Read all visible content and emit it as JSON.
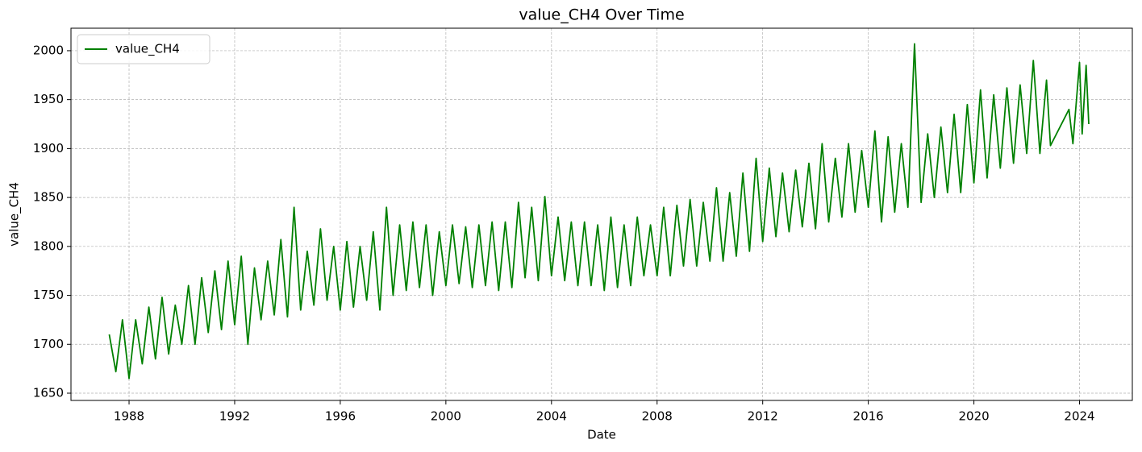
{
  "chart_data": {
    "type": "line",
    "title": "value_CH4 Over Time",
    "xlabel": "Date",
    "ylabel": "value_CH4",
    "x": [
      1987.25,
      1987.5,
      1987.75,
      1988,
      1988.25,
      1988.5,
      1988.75,
      1989,
      1989.25,
      1989.5,
      1989.75,
      1990,
      1990.25,
      1990.5,
      1990.75,
      1991,
      1991.25,
      1991.5,
      1991.75,
      1992,
      1992.25,
      1992.5,
      1992.75,
      1993,
      1993.25,
      1993.5,
      1993.75,
      1994,
      1994.25,
      1994.5,
      1994.75,
      1995,
      1995.25,
      1995.5,
      1995.75,
      1996,
      1996.25,
      1996.5,
      1996.75,
      1997,
      1997.25,
      1997.5,
      1997.75,
      1998,
      1998.25,
      1998.5,
      1998.75,
      1999,
      1999.25,
      1999.5,
      1999.75,
      2000,
      2000.25,
      2000.5,
      2000.75,
      2001,
      2001.25,
      2001.5,
      2001.75,
      2002,
      2002.25,
      2002.5,
      2002.75,
      2003,
      2003.25,
      2003.5,
      2003.75,
      2004,
      2004.25,
      2004.5,
      2004.75,
      2005,
      2005.25,
      2005.5,
      2005.75,
      2006,
      2006.25,
      2006.5,
      2006.75,
      2007,
      2007.25,
      2007.5,
      2007.75,
      2008,
      2008.25,
      2008.5,
      2008.75,
      2009,
      2009.25,
      2009.5,
      2009.75,
      2010,
      2010.25,
      2010.5,
      2010.75,
      2011,
      2011.25,
      2011.5,
      2011.75,
      2012,
      2012.25,
      2012.5,
      2012.75,
      2013,
      2013.25,
      2013.5,
      2013.75,
      2014,
      2014.25,
      2014.5,
      2014.75,
      2015,
      2015.25,
      2015.5,
      2015.75,
      2016,
      2016.25,
      2016.5,
      2016.75,
      2017,
      2017.25,
      2017.5,
      2017.75,
      2018,
      2018.25,
      2018.5,
      2018.75,
      2019,
      2019.25,
      2019.5,
      2019.75,
      2020,
      2020.25,
      2020.5,
      2020.75,
      2021,
      2021.25,
      2021.5,
      2021.75,
      2022,
      2022.25,
      2022.5,
      2022.75,
      2022.9,
      2023.6,
      2023.75,
      2024,
      2024.1,
      2024.25,
      2024.35
    ],
    "series": [
      {
        "name": "value_CH4",
        "color": "#008000",
        "values": [
          1710,
          1672,
          1725,
          1665,
          1725,
          1680,
          1738,
          1685,
          1748,
          1690,
          1740,
          1700,
          1760,
          1700,
          1768,
          1712,
          1775,
          1715,
          1785,
          1720,
          1790,
          1700,
          1778,
          1725,
          1785,
          1730,
          1807,
          1728,
          1840,
          1735,
          1795,
          1740,
          1818,
          1745,
          1800,
          1735,
          1805,
          1738,
          1800,
          1745,
          1815,
          1735,
          1840,
          1750,
          1822,
          1755,
          1825,
          1758,
          1822,
          1750,
          1815,
          1760,
          1822,
          1762,
          1820,
          1758,
          1822,
          1760,
          1825,
          1755,
          1825,
          1758,
          1845,
          1768,
          1840,
          1765,
          1851,
          1770,
          1830,
          1765,
          1825,
          1760,
          1825,
          1760,
          1822,
          1755,
          1830,
          1758,
          1822,
          1760,
          1830,
          1770,
          1822,
          1770,
          1840,
          1770,
          1842,
          1780,
          1848,
          1780,
          1845,
          1785,
          1860,
          1785,
          1855,
          1790,
          1875,
          1795,
          1890,
          1805,
          1880,
          1810,
          1875,
          1815,
          1878,
          1820,
          1885,
          1818,
          1905,
          1825,
          1890,
          1830,
          1905,
          1835,
          1898,
          1840,
          1918,
          1825,
          1912,
          1835,
          1905,
          1840,
          2007,
          1845,
          1915,
          1850,
          1922,
          1855,
          1935,
          1855,
          1945,
          1865,
          1960,
          1870,
          1955,
          1880,
          1962,
          1885,
          1965,
          1895,
          1990,
          1895,
          1970,
          1903,
          1940,
          1905,
          1988,
          1915,
          1985,
          1925
        ]
      }
    ],
    "xlim": [
      1985.8,
      2026.0
    ],
    "xticks": [
      1988,
      1992,
      1996,
      2000,
      2004,
      2008,
      2012,
      2016,
      2020,
      2024
    ],
    "ylim": [
      1642.6,
      2023
    ],
    "yticks": [
      1650,
      1700,
      1750,
      1800,
      1850,
      1900,
      1950,
      2000
    ],
    "grid": true,
    "legend": "upper left"
  }
}
